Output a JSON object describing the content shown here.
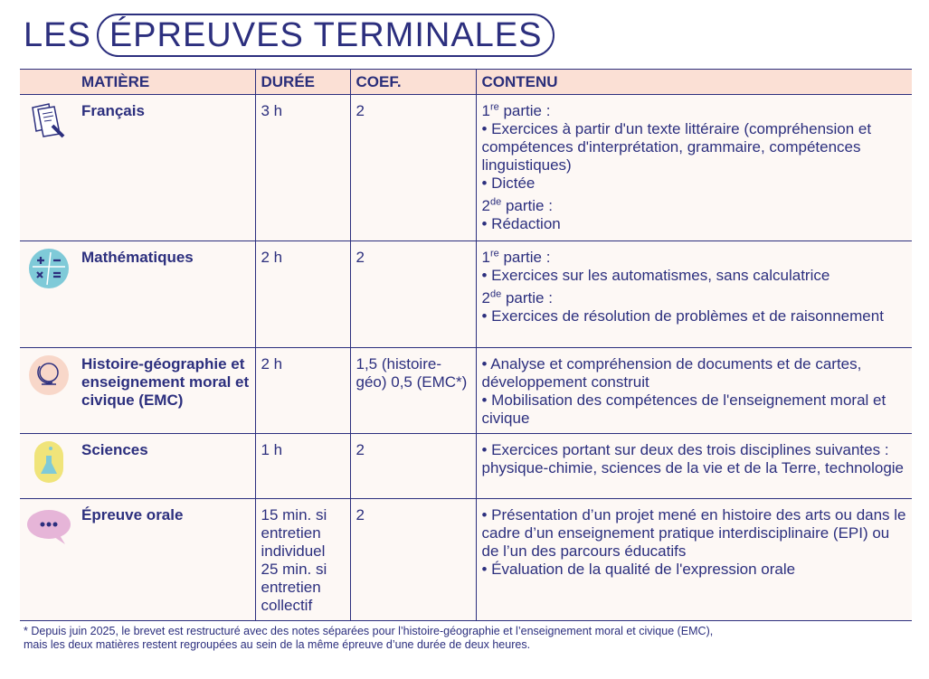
{
  "title": {
    "prefix": "LES",
    "main": "ÉPREUVES TERMINALES"
  },
  "headers": {
    "subject": "MATIÈRE",
    "duration": "DURÉE",
    "coef": "COEF.",
    "content": "CONTENU"
  },
  "rows": [
    {
      "icon": "document-pen-icon",
      "subject": "Français",
      "duration": "3 h",
      "coef": "2",
      "content": [
        "1|re| partie :",
        "• Exercices à partir d'un texte littéraire (compréhension et compétences d'interprétation, grammaire, compétences linguistiques)",
        "• Dictée",
        "2|de| partie :",
        "• Rédaction"
      ]
    },
    {
      "icon": "math-operators-icon",
      "subject": "Mathématiques",
      "duration": "2 h",
      "coef": "2",
      "content": [
        "1|re| partie :",
        "• Exercices sur les automatismes, sans calculatrice",
        "2|de| partie :",
        "• Exercices de résolution de problèmes et de raisonnement"
      ]
    },
    {
      "icon": "globe-icon",
      "subject": "Histoire-géographie et enseignement moral et civique (EMC)",
      "duration": "2 h",
      "coef": "1,5 (histoire-géo) 0,5 (EMC*)",
      "content": [
        "• Analyse et compréhension de documents et de cartes, développement construit",
        "• Mobilisation des compétences de l'enseignement moral et civique"
      ]
    },
    {
      "icon": "flask-icon",
      "subject": "Sciences",
      "duration": "1 h",
      "coef": "2",
      "content": [
        "• Exercices portant sur deux des trois disciplines suivantes : physique-chimie, sciences de la vie et de la Terre, technologie"
      ]
    },
    {
      "icon": "speech-bubble-icon",
      "subject": "Épreuve orale",
      "duration": "15 min. si entretien individuel 25 min. si entretien collectif",
      "coef": "2",
      "content": [
        "• Présentation d’un projet mené en histoire des arts ou dans le cadre d’un enseignement pratique interdisciplinaire (EPI) ou de l’un des parcours éducatifs",
        "• Évaluation de la qualité de l'expression orale"
      ]
    }
  ],
  "footnote": "* Depuis juin 2025, le brevet est restructuré avec des notes séparées pour l’histoire-géographie et l’enseignement moral et civique (EMC), mais les deux matières restent regroupées au sein de la même épreuve d’une durée de deux heures.",
  "colors": {
    "navy": "#2c2f7e",
    "header_bg": "#fbe0d5",
    "row_bg": "#fdf8f5"
  }
}
